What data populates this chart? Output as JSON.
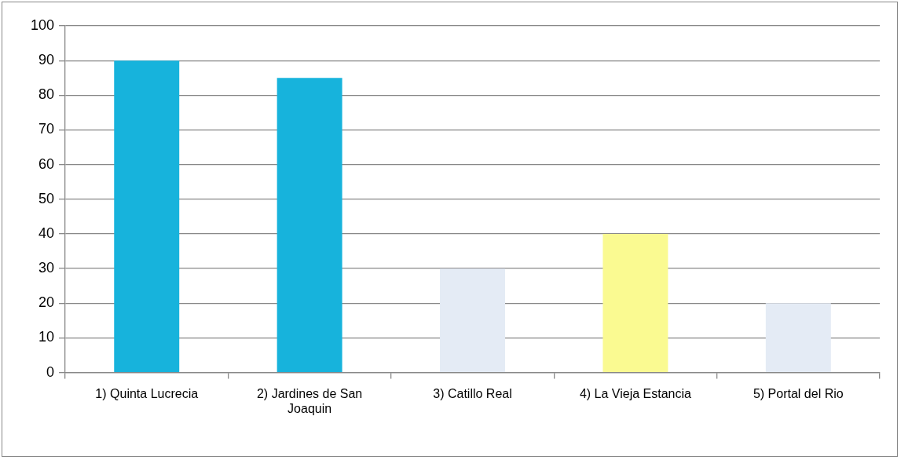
{
  "chart_data": {
    "type": "bar",
    "categories": [
      "1) Quinta Lucrecia",
      "2) Jardines de San Joaquin",
      "3) Catillo Real",
      "4) La Vieja Estancia",
      "5) Portal del Rio"
    ],
    "values": [
      90,
      85,
      30,
      40,
      20
    ],
    "colors": [
      "#17b3dc",
      "#17b3dc",
      "#e4ebf5",
      "#fafa91",
      "#e4ebf5"
    ],
    "ylim": [
      0,
      100
    ],
    "yticks": [
      0,
      10,
      20,
      30,
      40,
      50,
      60,
      70,
      80,
      90,
      100
    ],
    "grid": "y",
    "legend": false
  }
}
